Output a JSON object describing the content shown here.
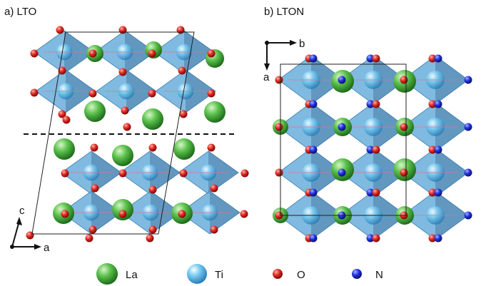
{
  "panel_a": {
    "label": "a) LTO",
    "axis_vertical": "c",
    "axis_horizontal": "a"
  },
  "panel_b": {
    "label": "b) LTON",
    "axis_horizontal": "b",
    "axis_vertical": "a"
  },
  "legend": [
    {
      "label": "La",
      "color": "#3fae3a"
    },
    {
      "label": "Ti",
      "color": "#5fc2ee"
    },
    {
      "label": "O",
      "color": "#d92020"
    },
    {
      "label": "N",
      "color": "#1f2bd1"
    }
  ],
  "colors": {
    "octahedron": "#6aaedc",
    "la": "#3fae3a",
    "oxygen": "#d92020",
    "nitrogen": "#1f2bd1"
  }
}
